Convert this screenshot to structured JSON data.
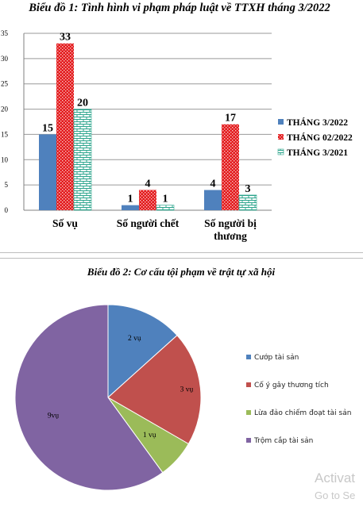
{
  "chart_data": [
    {
      "type": "bar",
      "title": "Biểu đồ 1: Tình hình vi phạm pháp luật về TTXH tháng 3/2022",
      "categories": [
        "Số vụ",
        "Số người chết",
        "Số người bị thương"
      ],
      "category_lines": [
        [
          "Số vụ"
        ],
        [
          "Số người chết"
        ],
        [
          "Số người bị",
          "thương"
        ]
      ],
      "series": [
        {
          "name": "THÁNG 3/2022",
          "values": [
            15,
            1,
            4
          ],
          "color": "#4f81bd",
          "pattern": "solid"
        },
        {
          "name": "THÁNG 02/2022",
          "values": [
            33,
            4,
            17
          ],
          "color": "#e31a1c",
          "pattern": "dots"
        },
        {
          "name": "THÁNG 3/2021",
          "values": [
            20,
            1,
            3
          ],
          "color": "#2ca58d",
          "pattern": "bricks"
        }
      ],
      "ylim": [
        0,
        35
      ],
      "yticks": [
        0,
        5,
        10,
        15,
        20,
        25,
        30,
        35
      ],
      "grid": true,
      "legend_position": "right"
    },
    {
      "type": "pie",
      "title": "Biểu đồ 2: Cơ cấu tội phạm về trật tự xã hội",
      "slices": [
        {
          "name": "Cướp tài sản",
          "value": 2,
          "label": "2 vụ",
          "color": "#4f81bd"
        },
        {
          "name": "Cố ý gây thương tích",
          "value": 3,
          "label": "3 vụ",
          "color": "#c0504d"
        },
        {
          "name": "Lừa đảo chiếm đoạt tài sản",
          "value": 1,
          "label": "1 vụ",
          "color": "#9bbb59"
        },
        {
          "name": "Trộm cắp tài sản",
          "value": 9,
          "label": "9vụ",
          "color": "#8064a2"
        }
      ],
      "legend_position": "right"
    }
  ],
  "watermark": {
    "line1": "Activat",
    "line2": "Go to Se"
  }
}
